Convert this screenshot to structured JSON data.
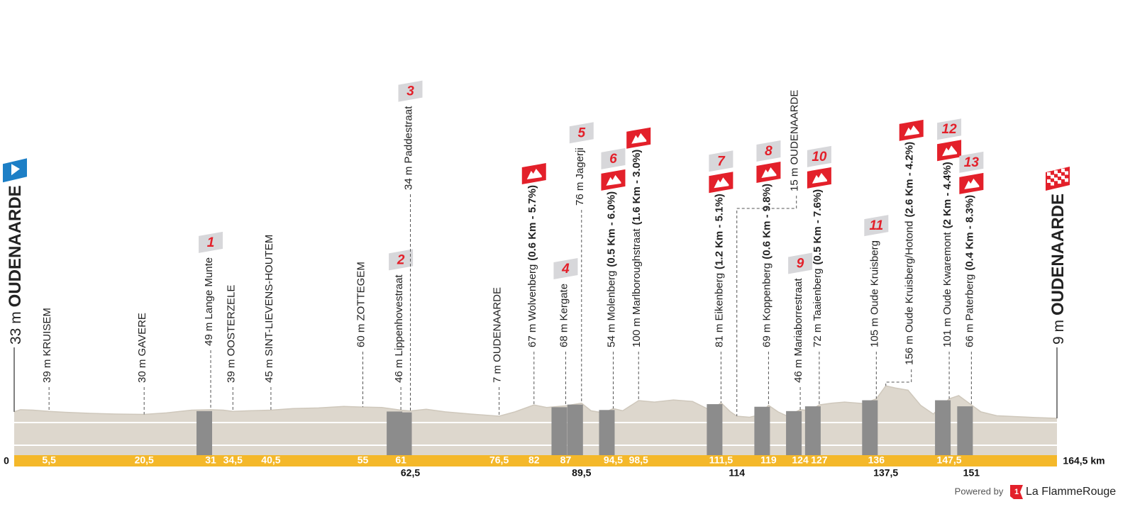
{
  "chart_data": {
    "type": "profile",
    "start": {
      "altitude_label": "33 m",
      "name": "OUDENAARDE"
    },
    "finish": {
      "altitude_label": "9 m",
      "name": "OUDENAARDE"
    },
    "xlim": [
      0,
      164.5
    ],
    "ylim": [
      -160,
      200
    ],
    "xticks": [
      0,
      {
        "value": 5.5,
        "label": "5,5"
      },
      {
        "value": 20.5,
        "label": "20,5"
      },
      31,
      {
        "value": 34.5,
        "label": "34,5"
      },
      {
        "value": 40.5,
        "label": "40,5"
      },
      55,
      61,
      {
        "value": 62.5,
        "label": "62,5"
      },
      {
        "value": 76.5,
        "label": "76,5"
      },
      82,
      87,
      {
        "value": 89.5,
        "label": "89,5"
      },
      {
        "value": 94.5,
        "label": "94,5"
      },
      {
        "value": 98.5,
        "label": "98,5"
      },
      {
        "value": 111.5,
        "label": "111,5"
      },
      114,
      119,
      124,
      127,
      136,
      {
        "value": 137.5,
        "label": "137,5"
      },
      {
        "value": 147.5,
        "label": "147,5"
      },
      151,
      {
        "value": 164.5,
        "label": "164,5 km"
      }
    ],
    "waypoints": [
      {
        "label": "39 m KRUISEM"
      },
      {
        "label": "30 m GAVERE"
      },
      {
        "label": "49 m Lange Munte",
        "sector": 1
      },
      {
        "label": "39 m OOSTERZELE"
      },
      {
        "label": "45 m SINT-LIEVENS-HOUTEM"
      },
      {
        "label": "60 m ZOTTEGEM"
      },
      {
        "label": "46 m Lippenhovestraat",
        "sector": 2
      },
      {
        "label": "34 m Paddestraat",
        "sector": 3
      },
      {
        "label": "7 m OUDENAARDE"
      },
      {
        "label": "67 m Wolvenberg",
        "climb": "(0.6 Km - 5.7%)"
      },
      {
        "label": "68 m Kergate",
        "sector": 4
      },
      {
        "label": "76 m Jagerji",
        "sector": 5
      },
      {
        "label": "54 m Molenberg",
        "climb": "(0.5 Km - 6.0%)",
        "sector": 6
      },
      {
        "label": "100 m Marlboroughstraat",
        "climb": "(1.6 Km - 3.0%)"
      },
      {
        "label": "81 m Eikenberg",
        "climb": "(1.2 Km - 5.1%)",
        "sector": 7
      },
      {
        "label": "15 m OUDENAARDE"
      },
      {
        "label": "69 m Koppenberg",
        "climb": "(0.6 Km - 9.8%)",
        "sector": 8
      },
      {
        "label": "46 m Mariaborrestraat",
        "sector": 9
      },
      {
        "label": "72 m Taaienberg",
        "climb": "(0.5 Km - 7.6%)",
        "sector": 10
      },
      {
        "label": "105 m Oude Kruisberg",
        "sector": 11
      },
      {
        "label": "156 m Oude Kruisberg/Hotond",
        "climb": "(2.6 Km - 4.2%)"
      },
      {
        "label": "101 m Oude Kwaremont",
        "climb": "(2 Km - 4.4%)",
        "sector": 12
      },
      {
        "label": "66 m Paterberg",
        "climb": "(0.4 Km - 8.3%)",
        "sector": 13
      }
    ],
    "profile": {
      "km": [
        0,
        1,
        3,
        5.5,
        8,
        12,
        16,
        20.5,
        24,
        28,
        31,
        33,
        34.5,
        37,
        40.5,
        44,
        48,
        52,
        55,
        58,
        61,
        62.5,
        65,
        68,
        72,
        76.5,
        79,
        82,
        84,
        87,
        89.5,
        91,
        93,
        94.5,
        96,
        98.5,
        101,
        104,
        107,
        110,
        111.5,
        113,
        114,
        116,
        117.5,
        119,
        120.5,
        122,
        124,
        125.5,
        127,
        129,
        131,
        134,
        136,
        137.5,
        139,
        141,
        143,
        145,
        147.5,
        149,
        151,
        152.5,
        155,
        158,
        161,
        164.5
      ],
      "altitude": [
        40,
        50,
        48,
        42,
        38,
        33,
        30,
        28,
        35,
        48,
        50,
        48,
        42,
        45,
        48,
        55,
        58,
        65,
        62,
        60,
        48,
        44,
        52,
        40,
        30,
        20,
        40,
        72,
        60,
        68,
        80,
        45,
        35,
        55,
        45,
        92,
        85,
        95,
        88,
        45,
        82,
        40,
        20,
        15,
        25,
        70,
        40,
        20,
        50,
        45,
        72,
        80,
        85,
        78,
        100,
        160,
        150,
        140,
        70,
        30,
        100,
        115,
        72,
        40,
        22,
        18,
        14,
        10
      ]
    },
    "profile_color": "#ddd7cd",
    "axis_color": "#f4b82a"
  },
  "footer": {
    "powered_by": "Powered by",
    "logo_mark": "1",
    "brand": "La FlammeRouge"
  }
}
